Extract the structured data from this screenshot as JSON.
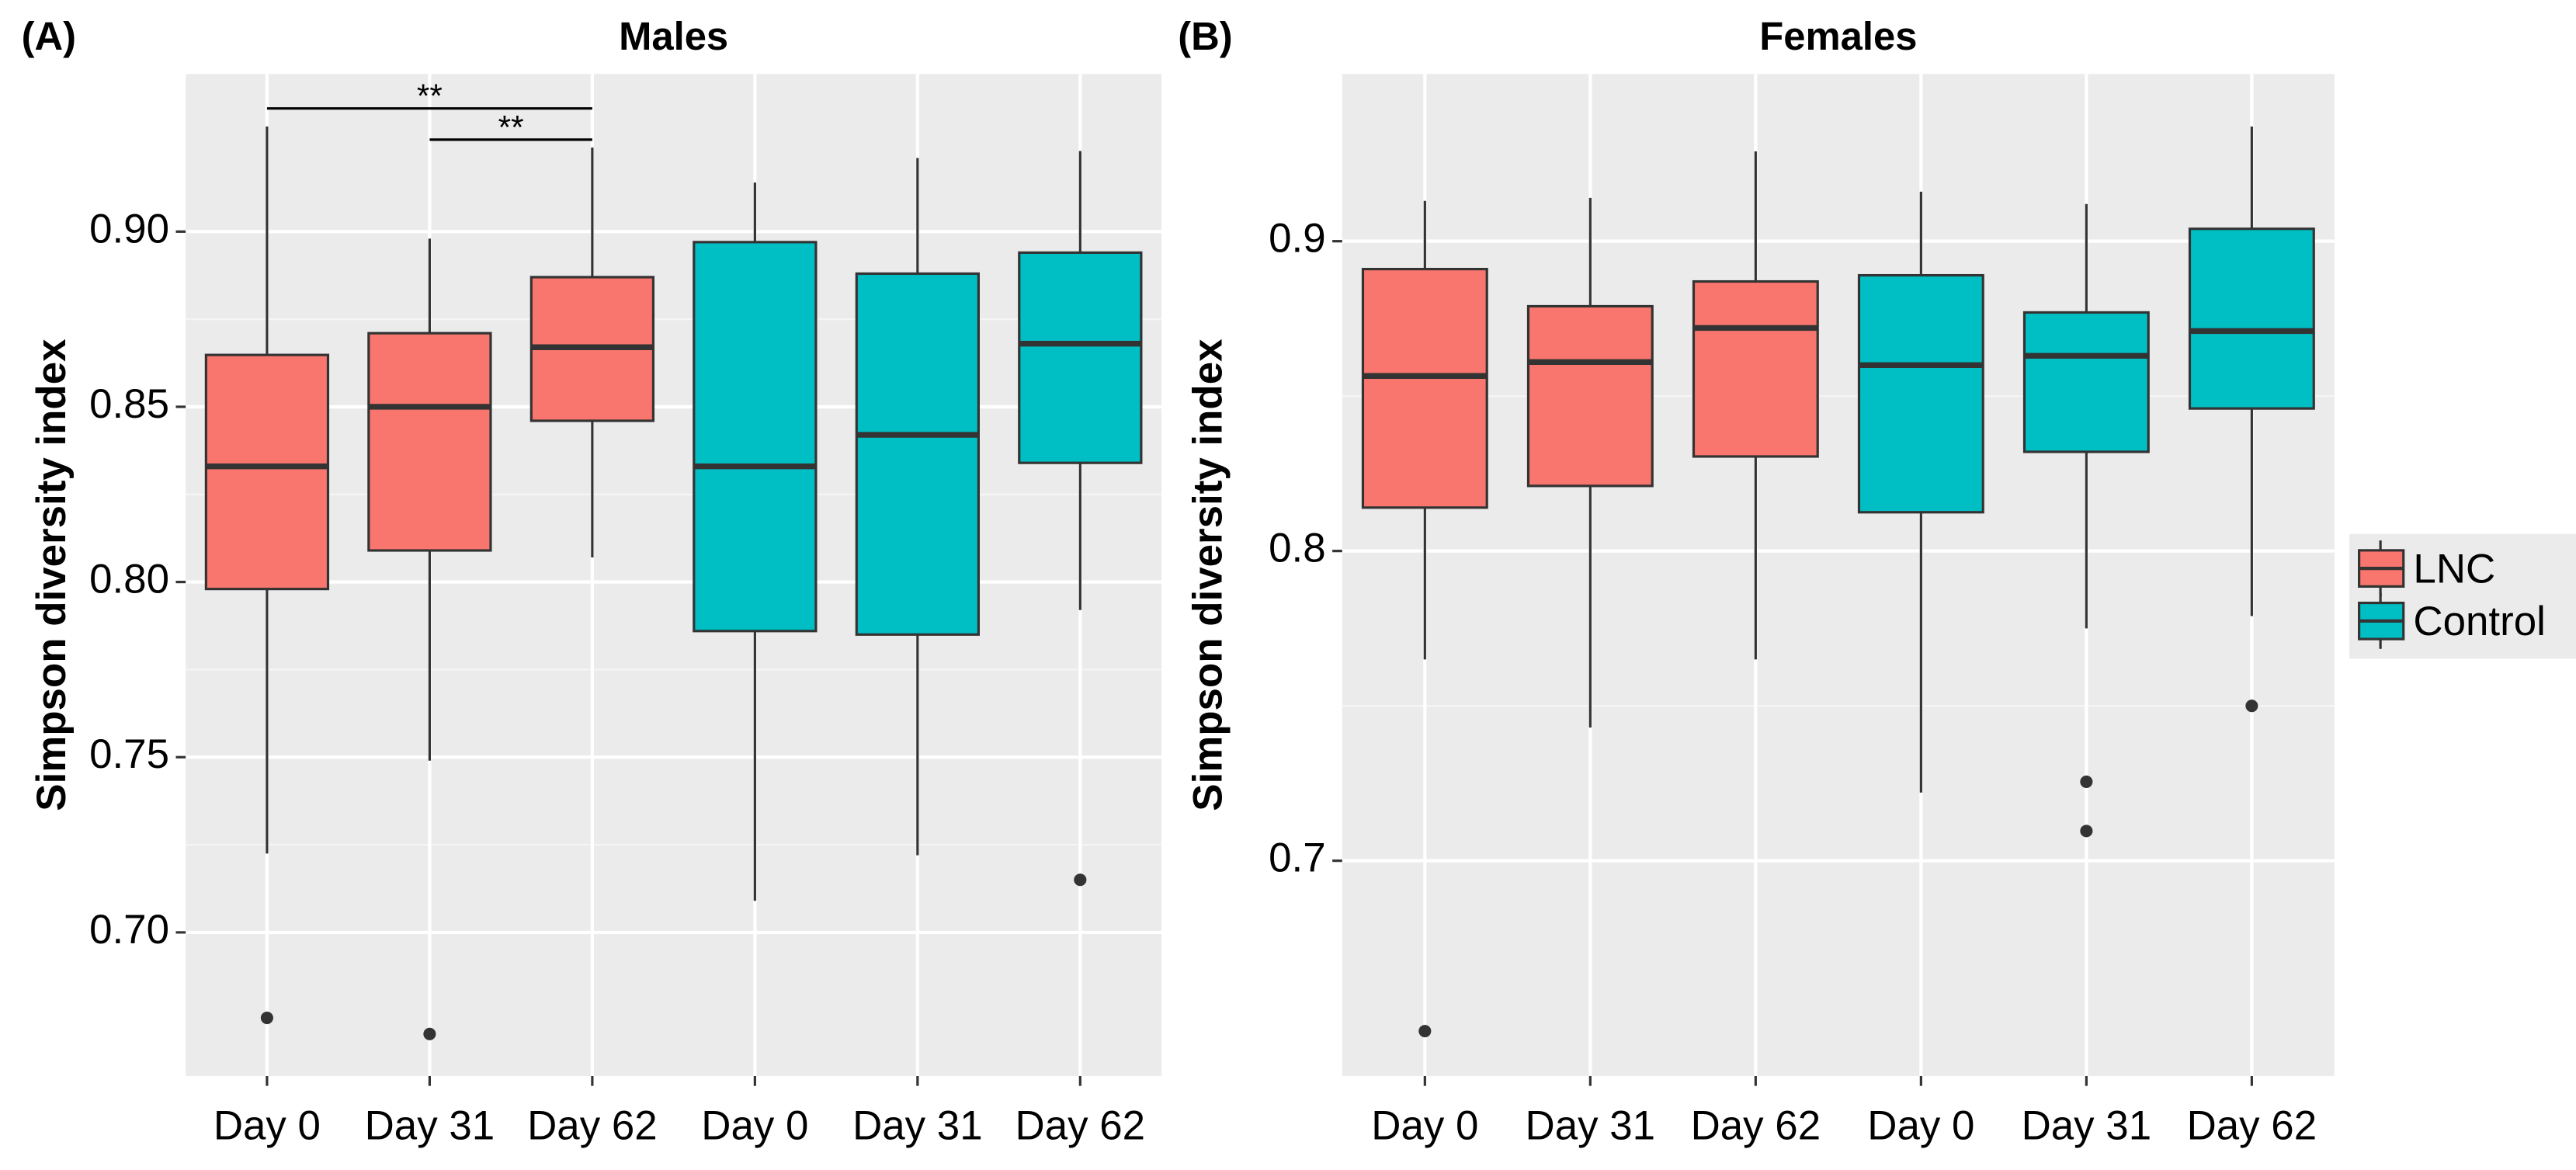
{
  "chart_data": [
    {
      "type": "box",
      "panel_label": "(A)",
      "title": "Males",
      "y_label": "Simpson diversity index",
      "categories": [
        "Day 0",
        "Day 31",
        "Day 62",
        "Day 0",
        "Day 31",
        "Day 62"
      ],
      "series": [
        {
          "name": "LNC",
          "color": "#F8766D",
          "values": [
            {
              "whisker_low": 0.7225,
              "q1": 0.798,
              "median": 0.833,
              "q3": 0.8648,
              "whisker_high": 0.93,
              "outliers": [
                0.6756
              ]
            },
            {
              "whisker_low": 0.749,
              "q1": 0.809,
              "median": 0.85,
              "q3": 0.871,
              "whisker_high": 0.898,
              "outliers": [
                0.671
              ]
            },
            {
              "whisker_low": 0.807,
              "q1": 0.846,
              "median": 0.867,
              "q3": 0.887,
              "whisker_high": 0.924,
              "outliers": []
            },
            null,
            null,
            null
          ]
        },
        {
          "name": "Control",
          "color": "#00BFC4",
          "values": [
            null,
            null,
            null,
            {
              "whisker_low": 0.709,
              "q1": 0.786,
              "median": 0.833,
              "q3": 0.897,
              "whisker_high": 0.914,
              "outliers": []
            },
            {
              "whisker_low": 0.722,
              "q1": 0.785,
              "median": 0.842,
              "q3": 0.888,
              "whisker_high": 0.921,
              "outliers": []
            },
            {
              "whisker_low": 0.792,
              "q1": 0.834,
              "median": 0.868,
              "q3": 0.894,
              "whisker_high": 0.923,
              "outliers": [
                0.715
              ]
            }
          ]
        }
      ],
      "annotations": [
        {
          "text": "**",
          "from": 0,
          "to": 2
        },
        {
          "text": "**",
          "from": 1,
          "to": 2
        }
      ],
      "ylim": [
        0.659,
        0.945
      ],
      "yticks": [
        {
          "value": 0.7,
          "label": "0.70"
        },
        {
          "value": 0.75,
          "label": "0.75"
        },
        {
          "value": 0.8,
          "label": "0.80"
        },
        {
          "value": 0.85,
          "label": "0.85"
        },
        {
          "value": 0.9,
          "label": "0.90"
        }
      ],
      "grid": true
    },
    {
      "type": "box",
      "panel_label": "(B)",
      "title": "Females",
      "y_label": "Simpson diversity index",
      "categories": [
        "Day 0",
        "Day 31",
        "Day 62",
        "Day 0",
        "Day 31",
        "Day 62"
      ],
      "series": [
        {
          "name": "LNC",
          "color": "#F8766D",
          "values": [
            {
              "whisker_low": 0.765,
              "q1": 0.814,
              "median": 0.8565,
              "q3": 0.891,
              "whisker_high": 0.913,
              "outliers": [
                0.645
              ]
            },
            {
              "whisker_low": 0.743,
              "q1": 0.821,
              "median": 0.861,
              "q3": 0.879,
              "whisker_high": 0.914,
              "outliers": []
            },
            {
              "whisker_low": 0.765,
              "q1": 0.8305,
              "median": 0.872,
              "q3": 0.887,
              "whisker_high": 0.929,
              "outliers": []
            },
            null,
            null,
            null
          ]
        },
        {
          "name": "Control",
          "color": "#00BFC4",
          "values": [
            null,
            null,
            null,
            {
              "whisker_low": 0.722,
              "q1": 0.8125,
              "median": 0.86,
              "q3": 0.889,
              "whisker_high": 0.916,
              "outliers": []
            },
            {
              "whisker_low": 0.775,
              "q1": 0.832,
              "median": 0.863,
              "q3": 0.877,
              "whisker_high": 0.912,
              "outliers": [
                0.7255,
                0.7096
              ]
            },
            {
              "whisker_low": 0.779,
              "q1": 0.846,
              "median": 0.871,
              "q3": 0.904,
              "whisker_high": 0.937,
              "outliers": [
                0.75
              ]
            }
          ]
        }
      ],
      "ylim": [
        0.6305,
        0.954
      ],
      "yticks": [
        0.7,
        0.8,
        0.9
      ],
      "grid": true,
      "legend": "right"
    }
  ]
}
